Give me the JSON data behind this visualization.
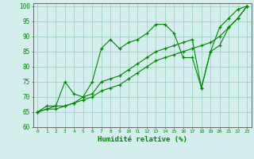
{
  "xlabel": "Humidité relative (%)",
  "xlim": [
    -0.5,
    23.5
  ],
  "ylim": [
    60,
    101
  ],
  "yticks": [
    60,
    65,
    70,
    75,
    80,
    85,
    90,
    95,
    100
  ],
  "xticks": [
    0,
    1,
    2,
    3,
    4,
    5,
    6,
    7,
    8,
    9,
    10,
    11,
    12,
    13,
    14,
    15,
    16,
    17,
    18,
    19,
    20,
    21,
    22,
    23
  ],
  "bg_color": "#d4eeed",
  "grid_color": "#99ccbb",
  "line_color": "#008800",
  "marker": "+",
  "line1": [
    65,
    67,
    67,
    75,
    71,
    70,
    75,
    86,
    89,
    86,
    88,
    89,
    91,
    94,
    94,
    91,
    83,
    83,
    73,
    85,
    93,
    96,
    99,
    100
  ],
  "line2": [
    65,
    66,
    67,
    67,
    68,
    70,
    71,
    75,
    76,
    77,
    79,
    81,
    83,
    85,
    86,
    87,
    88,
    89,
    73,
    85,
    87,
    93,
    96,
    100
  ],
  "line3": [
    65,
    66,
    66,
    67,
    68,
    69,
    70,
    72,
    73,
    74,
    76,
    78,
    80,
    82,
    83,
    84,
    85,
    86,
    87,
    88,
    90,
    93,
    96,
    100
  ]
}
